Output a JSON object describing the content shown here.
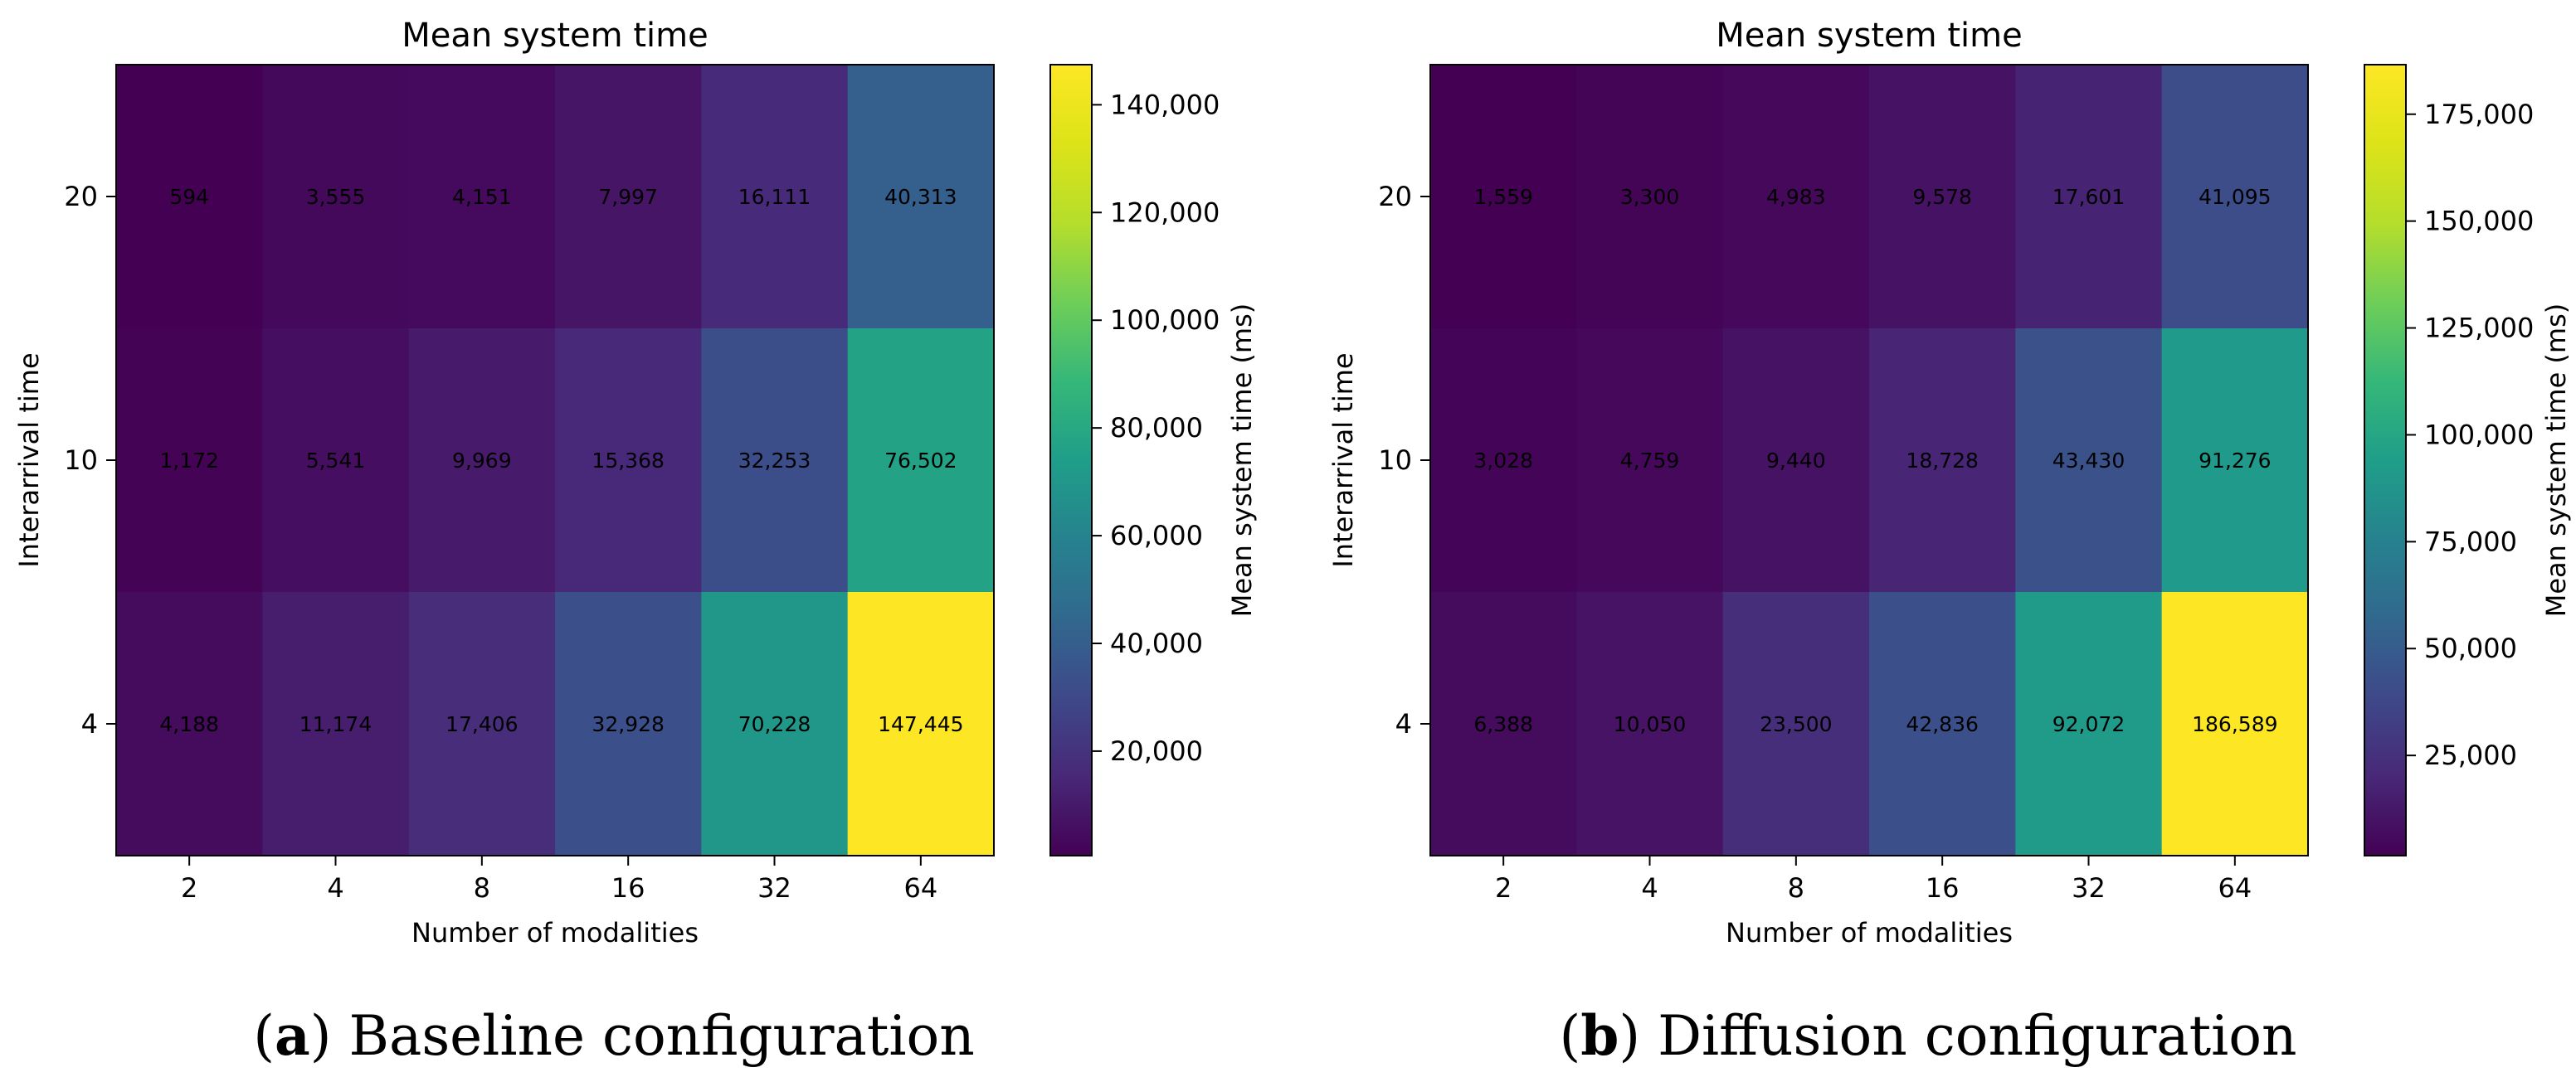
{
  "chart_data": [
    {
      "type": "heatmap",
      "title": "Mean system time",
      "xlabel": "Number of modalities",
      "ylabel": "Interarrival time",
      "x_categories": [
        "2",
        "4",
        "8",
        "16",
        "32",
        "64"
      ],
      "y_categories": [
        "20",
        "10",
        "4"
      ],
      "values": [
        [
          594,
          3555,
          4151,
          7997,
          16111,
          40313
        ],
        [
          1172,
          5541,
          9969,
          15368,
          32253,
          76502
        ],
        [
          4188,
          11174,
          17406,
          32928,
          70228,
          147445
        ]
      ],
      "value_labels": [
        [
          "594",
          "3,555",
          "4,151",
          "7,997",
          "16,111",
          "40,313"
        ],
        [
          "1,172",
          "5,541",
          "9,969",
          "15,368",
          "32,253",
          "76,502"
        ],
        [
          "4,188",
          "11,174",
          "17,406",
          "32,928",
          "70,228",
          "147,445"
        ]
      ],
      "colormap": "viridis",
      "vmin": 594,
      "vmax": 147445,
      "colorbar_label": "Mean system time (ms)",
      "colorbar_ticks": [
        20000,
        40000,
        60000,
        80000,
        100000,
        120000,
        140000
      ],
      "colorbar_tick_labels": [
        "20,000",
        "40,000",
        "60,000",
        "80,000",
        "100,000",
        "120,000",
        "140,000"
      ],
      "caption_letter": "a",
      "caption_text": " Baseline configuration"
    },
    {
      "type": "heatmap",
      "title": "Mean system time",
      "xlabel": "Number of modalities",
      "ylabel": "Interarrival time",
      "x_categories": [
        "2",
        "4",
        "8",
        "16",
        "32",
        "64"
      ],
      "y_categories": [
        "20",
        "10",
        "4"
      ],
      "values": [
        [
          1559,
          3300,
          4983,
          9578,
          17601,
          41095
        ],
        [
          3028,
          4759,
          9440,
          18728,
          43430,
          91276
        ],
        [
          6388,
          10050,
          23500,
          42836,
          92072,
          186589
        ]
      ],
      "value_labels": [
        [
          "1,559",
          "3,300",
          "4,983",
          "9,578",
          "17,601",
          "41,095"
        ],
        [
          "3,028",
          "4,759",
          "9,440",
          "18,728",
          "43,430",
          "91,276"
        ],
        [
          "6,388",
          "10,050",
          "23,500",
          "42,836",
          "92,072",
          "186,589"
        ]
      ],
      "colormap": "viridis",
      "vmin": 1559,
      "vmax": 186589,
      "colorbar_label": "Mean system time (ms)",
      "colorbar_ticks": [
        25000,
        50000,
        75000,
        100000,
        125000,
        150000,
        175000
      ],
      "colorbar_tick_labels": [
        "25,000",
        "50,000",
        "75,000",
        "100,000",
        "125,000",
        "150,000",
        "175,000"
      ],
      "caption_letter": "b",
      "caption_text": " Diffusion configuration"
    }
  ]
}
